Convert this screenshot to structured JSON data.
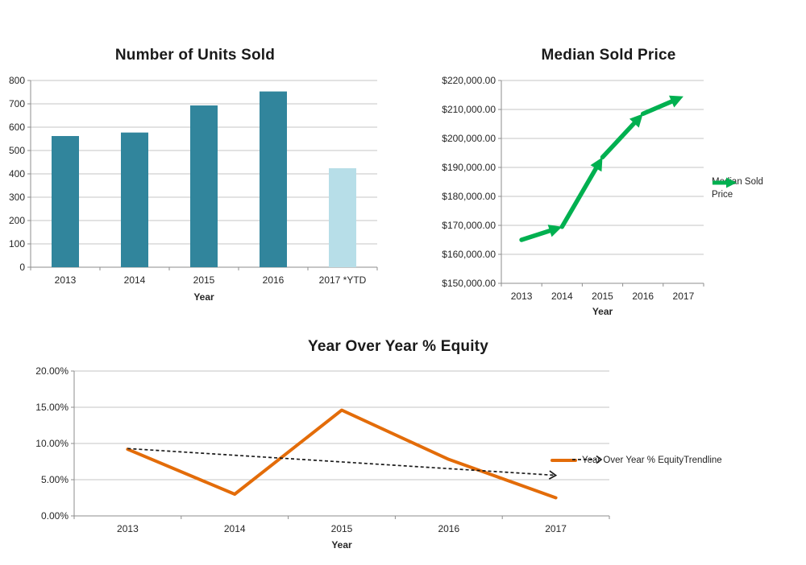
{
  "chart_data": [
    {
      "type": "bar",
      "title": "Number of Units Sold",
      "xlabel": "Year",
      "categories": [
        "2013",
        "2014",
        "2015",
        "2016",
        "2017 *YTD"
      ],
      "values": [
        562,
        577,
        693,
        753,
        424
      ],
      "ylim": [
        0,
        800
      ],
      "ytick_step": 100,
      "ytick_format": "number",
      "grid": true,
      "legend_position": "none",
      "bar_colors": [
        "#31859C",
        "#31859C",
        "#31859C",
        "#31859C",
        "#B7DEE8"
      ]
    },
    {
      "type": "line",
      "title": "Median Sold Price",
      "xlabel": "Year",
      "categories": [
        "2013",
        "2014",
        "2015",
        "2016",
        "2017"
      ],
      "series": [
        {
          "name": "Median Sold Price",
          "values": [
            165000,
            169500,
            193500,
            208500,
            214500
          ],
          "color": "#00B050",
          "style": "solid-arrow"
        }
      ],
      "ylim": [
        150000,
        220000
      ],
      "ytick_step": 10000,
      "ytick_format": "currency",
      "grid": true,
      "legend_position": "right"
    },
    {
      "type": "line",
      "title": "Year Over Year % Equity",
      "xlabel": "Year",
      "categories": [
        "2013",
        "2014",
        "2015",
        "2016",
        "2017"
      ],
      "series": [
        {
          "name": "Year Over Year % Equity",
          "values": [
            9.2,
            3.0,
            14.6,
            7.8,
            2.5
          ],
          "color": "#E36C09",
          "style": "solid"
        },
        {
          "name": "Trendline",
          "values": [
            9.3,
            5.6
          ],
          "color": "#1A1A1A",
          "style": "dashed-arrow"
        }
      ],
      "ylim": [
        0,
        20
      ],
      "ytick_step": 5,
      "ytick_format": "percent",
      "grid": true,
      "legend_position": "inside-right"
    }
  ],
  "style_colors": {
    "gridline": "#C6C6C6",
    "axis": "#8E8E8E",
    "tick_text": "#262626"
  }
}
